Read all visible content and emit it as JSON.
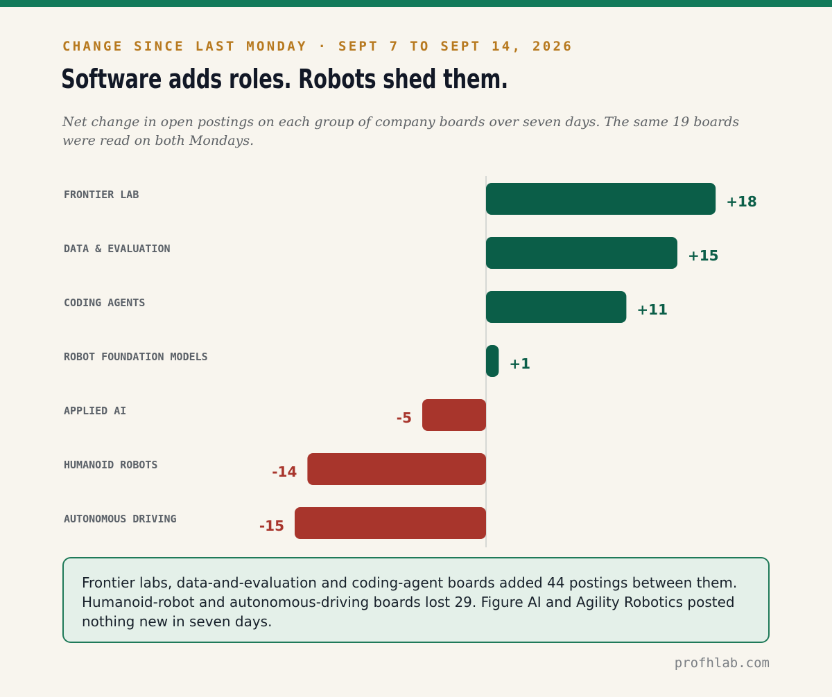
{
  "header": {
    "kicker": "CHANGE SINCE LAST MONDAY · SEPT 7 TO SEPT 14, 2026",
    "title": "Software adds roles. Robots shed them.",
    "subtitle": "Net change in open postings on each group of company boards over seven days. The same 19 boards were read on both Mondays."
  },
  "chart_data": {
    "type": "bar",
    "orientation": "horizontal",
    "categories": [
      "FRONTIER LAB",
      "DATA & EVALUATION",
      "CODING AGENTS",
      "ROBOT FOUNDATION MODELS",
      "APPLIED AI",
      "HUMANOID ROBOTS",
      "AUTONOMOUS DRIVING"
    ],
    "values": [
      18,
      15,
      11,
      1,
      -5,
      -14,
      -15
    ],
    "value_labels": [
      "+18",
      "+15",
      "+11",
      "+1",
      "-5",
      "-14",
      "-15"
    ],
    "colors": {
      "positive": "#0b5e48",
      "negative": "#a8352c",
      "zero_line": "#d6d8d4"
    }
  },
  "callout": {
    "text": "Frontier labs, data-and-evaluation and coding-agent boards added 44 postings between them. Humanoid-robot and autonomous-driving boards lost 29. Figure AI and Agility Robotics posted nothing new in seven days."
  },
  "footer": {
    "source": "profhlab.com"
  }
}
